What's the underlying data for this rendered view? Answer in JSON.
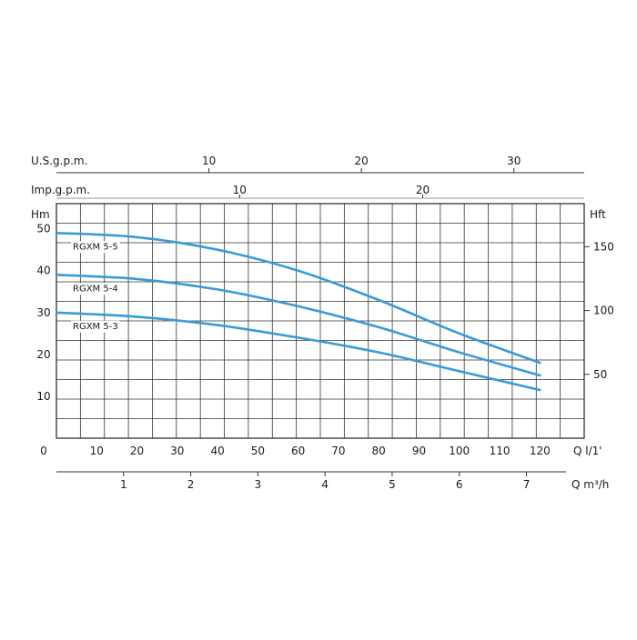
{
  "chart_data": {
    "type": "line",
    "title": "",
    "x_unit_label": "Q l/1'",
    "x_ticks": [
      0,
      10,
      20,
      30,
      40,
      50,
      60,
      70,
      80,
      90,
      100,
      110,
      120
    ],
    "xlim": [
      0,
      131
    ],
    "y_unit_label": "Hm",
    "y_ticks": [
      0,
      10,
      20,
      30,
      40,
      50
    ],
    "ylim": [
      0,
      56
    ],
    "y2_unit_label": "Hft",
    "y2_ticks": [
      50,
      100,
      150
    ],
    "q_m3h_label": "Q m³/h",
    "q_m3h_ticks": [
      1,
      2,
      3,
      4,
      5,
      6,
      7
    ],
    "usgpm_label": "U.S.g.p.m.",
    "usgpm_ticks": [
      10,
      20,
      30
    ],
    "impgpm_label": "Imp.g.p.m.",
    "impgpm_ticks": [
      10,
      20
    ],
    "grid": true,
    "line_color": "#3a9ad9",
    "series": [
      {
        "name": "RGXM 5-5",
        "points": [
          [
            0,
            49
          ],
          [
            20,
            48
          ],
          [
            40,
            45
          ],
          [
            60,
            40
          ],
          [
            80,
            33
          ],
          [
            100,
            25
          ],
          [
            120,
            18
          ]
        ]
      },
      {
        "name": "RGXM 5-4",
        "points": [
          [
            0,
            39
          ],
          [
            20,
            38
          ],
          [
            40,
            35.5
          ],
          [
            60,
            31.5
          ],
          [
            80,
            26.5
          ],
          [
            100,
            20.5
          ],
          [
            120,
            15
          ]
        ]
      },
      {
        "name": "RGXM 5-3",
        "points": [
          [
            0,
            30
          ],
          [
            20,
            29
          ],
          [
            40,
            27
          ],
          [
            60,
            24
          ],
          [
            80,
            20.5
          ],
          [
            100,
            16
          ],
          [
            120,
            11.5
          ]
        ]
      }
    ]
  }
}
